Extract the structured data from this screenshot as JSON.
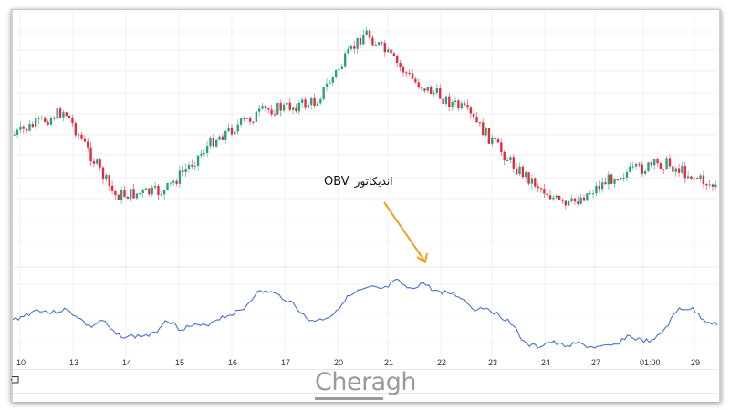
{
  "annotation": {
    "label_latin": "OBV",
    "label_persian": "اندیکاتور",
    "arrow_color": "#f0a020"
  },
  "watermark": {
    "text": "Cheragh"
  },
  "colors": {
    "up_candle": "#26a17b",
    "down_candle": "#e8283c",
    "obv_line": "#4a72d4",
    "grid": "#f0f0f0",
    "arrow": "#f0a020"
  },
  "time_axis": {
    "labels": [
      "10",
      "13",
      "14",
      "15",
      "16",
      "17",
      "20",
      "21",
      "22",
      "23",
      "24",
      "27",
      "01:00",
      "29"
    ]
  },
  "icons": {
    "bottom_left": "calendar-range-icon"
  },
  "chart_data": [
    {
      "type": "candlestick",
      "title": "",
      "pane": "price",
      "xlabel": "",
      "ylabel": "",
      "categories": [
        "10",
        "13",
        "14",
        "15",
        "16",
        "17",
        "20",
        "21",
        "22",
        "23",
        "24",
        "27",
        "01:00",
        "29"
      ],
      "close_trend_approx": [
        0.46,
        0.58,
        0.16,
        0.18,
        0.44,
        0.58,
        0.62,
        0.97,
        0.72,
        0.58,
        0.3,
        0.1,
        0.26,
        0.32,
        0.2
      ],
      "description": "Price rises from ~0.46 to a local high ~0.6 at day 10-13, drops to low ~0.16 by day 14, climbs to ~0.58 around day 16, dips, then rallies to peak ~0.97 on day 20, pulls back to ~0.72 range through 21-22, declines sharply through 23 to lows ~0.10 at 24, recovers slightly to ~0.30 by 29 and ends falling.",
      "grid": true
    },
    {
      "type": "line",
      "title": "OBV",
      "pane": "indicator",
      "series": [
        {
          "name": "OBV",
          "values": [
            0.4,
            0.47,
            0.55,
            0.5,
            0.55,
            0.46,
            0.3,
            0.4,
            0.2,
            0.17,
            0.18,
            0.2,
            0.42,
            0.28,
            0.32,
            0.32,
            0.42,
            0.48,
            0.55,
            0.78,
            0.8,
            0.72,
            0.62,
            0.4,
            0.4,
            0.48,
            0.7,
            0.8,
            0.85,
            0.83,
            0.95,
            0.82,
            0.92,
            0.8,
            0.78,
            0.72,
            0.55,
            0.58,
            0.46,
            0.36,
            0.06,
            0.03,
            0.1,
            0.04,
            0.08,
            0.03,
            0.02,
            0.05,
            0.18,
            0.12,
            0.1,
            0.3,
            0.56,
            0.56,
            0.4,
            0.34
          ]
        }
      ],
      "categories": [
        "10",
        "13",
        "14",
        "15",
        "16",
        "17",
        "20",
        "21",
        "22",
        "23",
        "24",
        "27",
        "01:00",
        "29"
      ],
      "grid": true
    }
  ]
}
